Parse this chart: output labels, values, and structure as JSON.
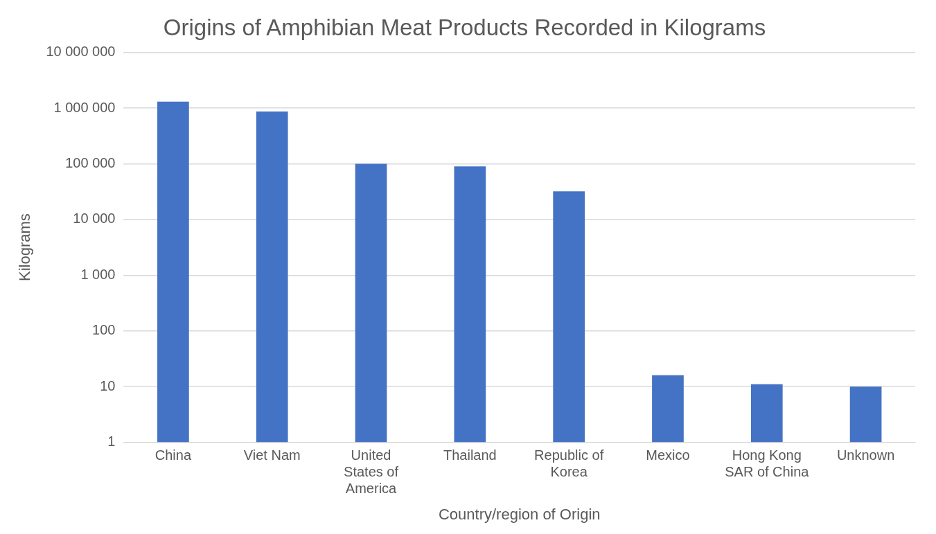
{
  "chart_data": {
    "type": "bar",
    "title": "Origins of Amphibian Meat Products Recorded in Kilograms",
    "xlabel": "Country/region of Origin",
    "ylabel": "Kilograms",
    "categories": [
      "China",
      "Viet Nam",
      "United States of America",
      "Thailand",
      "Republic of Korea",
      "Mexico",
      "Hong Kong SAR of China",
      "Unknown"
    ],
    "values": [
      1300000,
      870000,
      100000,
      90000,
      32000,
      16,
      11,
      10
    ],
    "color": "#4472c4",
    "log": "y",
    "ylim": [
      1,
      10000000
    ],
    "yticks": [
      1,
      10,
      100,
      {
        "value": 1000,
        "label": "1 000"
      },
      {
        "value": 10000,
        "label": "10 000"
      },
      {
        "value": 100000,
        "label": "100 000"
      },
      {
        "value": 1000000,
        "label": "1 000 000"
      },
      {
        "value": 10000000,
        "label": "10 000 000"
      }
    ],
    "grid": "y",
    "legend": false
  }
}
